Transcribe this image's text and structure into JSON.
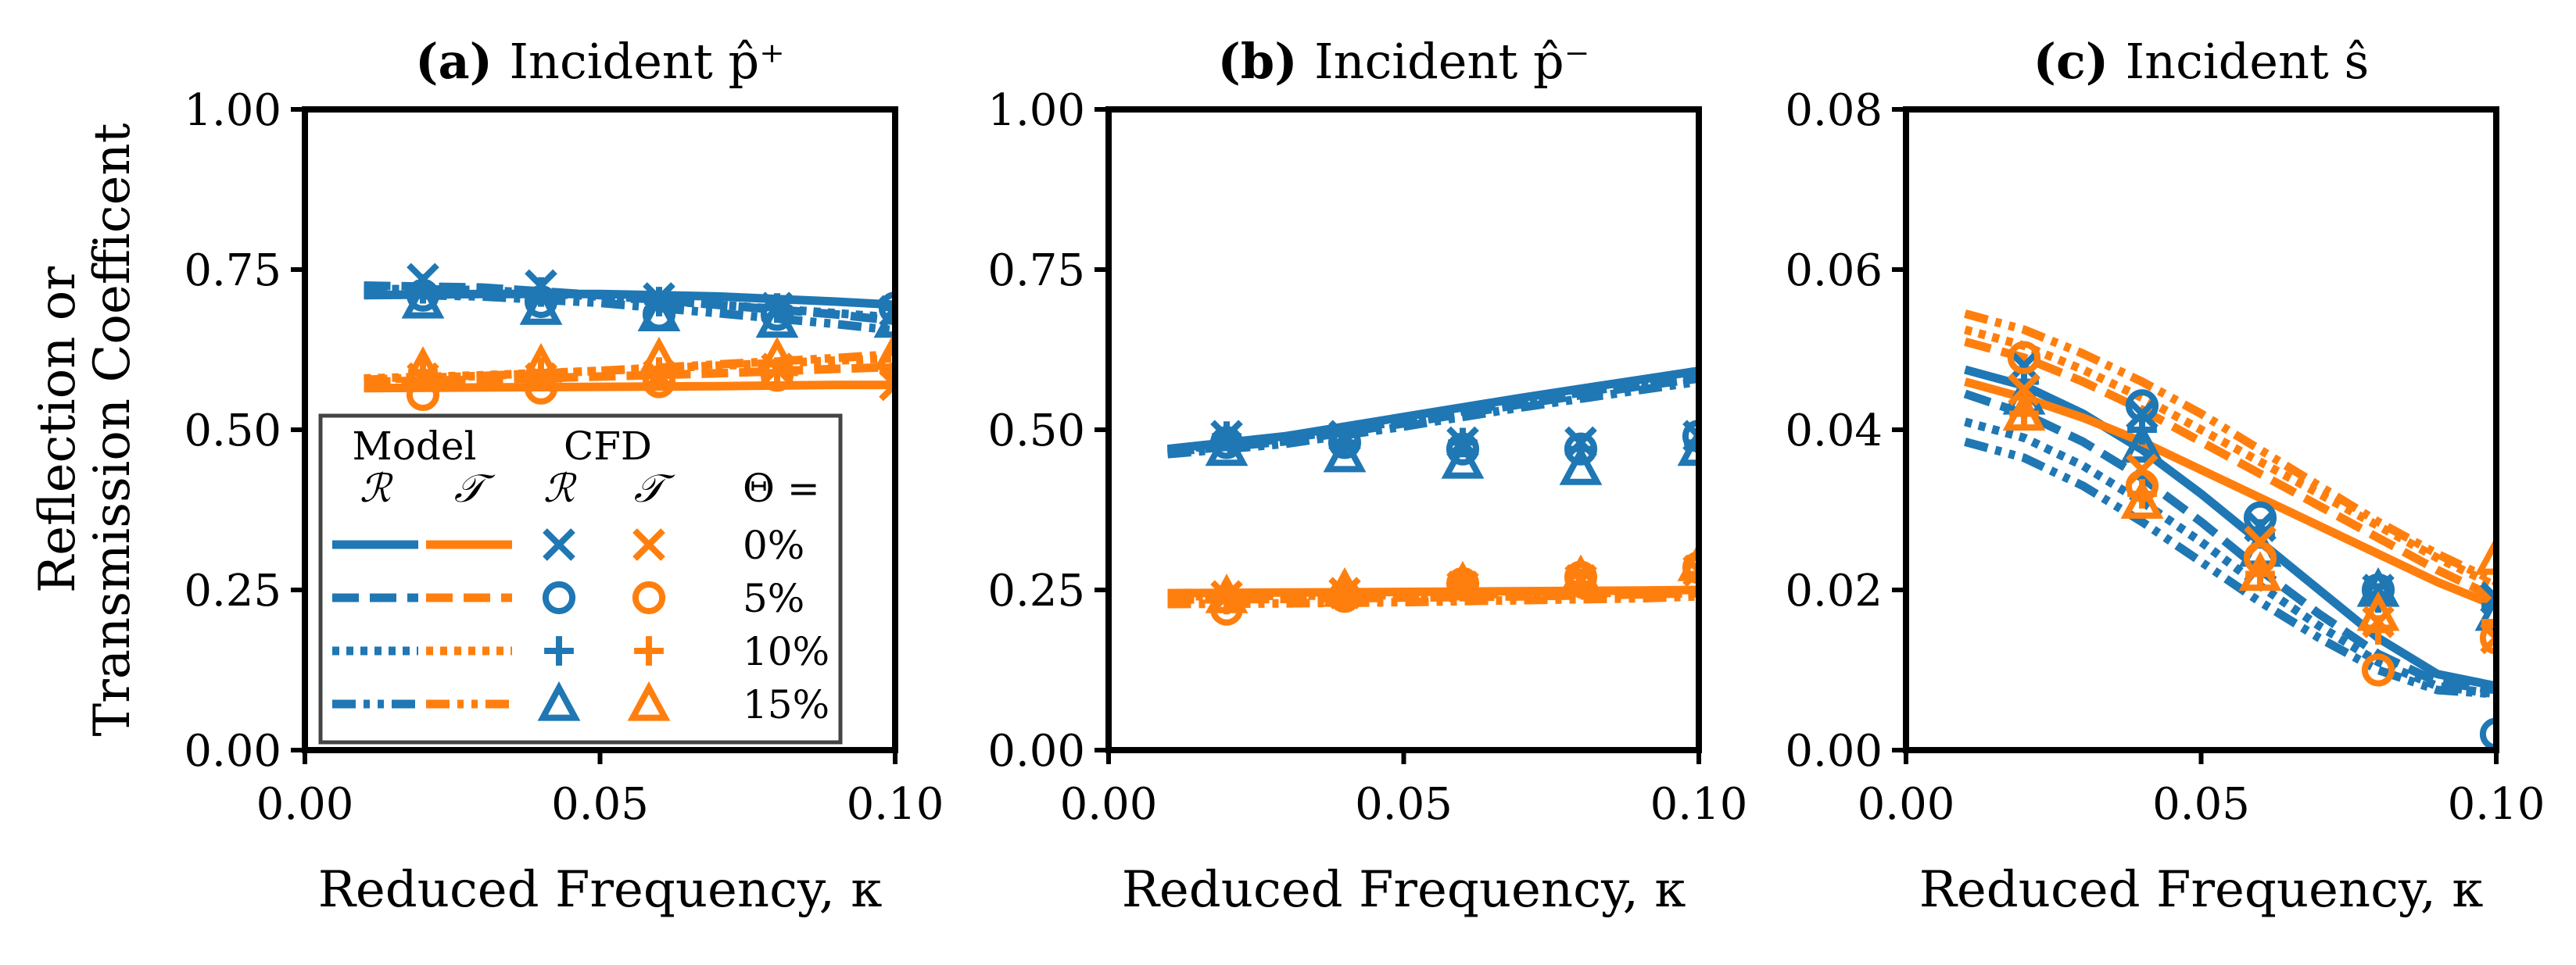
{
  "chart_data": [
    {
      "type": "line",
      "panel": "a",
      "title_bold": "(a)",
      "title": "Incident p̂⁺",
      "xlabel": "Reduced Frequency, κ",
      "ylabel_line1": "Reflection or",
      "ylabel_line2": "Transmission Coefficent",
      "xlim": [
        0.0,
        0.1
      ],
      "ylim": [
        0.0,
        1.0
      ],
      "xticks": [
        0.0,
        0.05,
        0.1
      ],
      "xtick_labels": [
        "0.00",
        "0.05",
        "0.10"
      ],
      "yticks": [
        0.0,
        0.25,
        0.5,
        0.75,
        1.0
      ],
      "ytick_labels": [
        "0.00",
        "0.25",
        "0.50",
        "0.75",
        "1.00"
      ],
      "model_x": [
        0.01,
        0.03,
        0.05,
        0.07,
        0.09,
        0.1
      ],
      "model_series": [
        {
          "name": "R 0%",
          "color": "#1f77b4",
          "dash": "solid",
          "y": [
            0.71,
            0.712,
            0.712,
            0.708,
            0.7,
            0.695
          ]
        },
        {
          "name": "R 5%",
          "color": "#1f77b4",
          "dash": "dashed",
          "y": [
            0.725,
            0.722,
            0.71,
            0.695,
            0.68,
            0.67
          ]
        },
        {
          "name": "R 10%",
          "color": "#1f77b4",
          "dash": "dotted",
          "y": [
            0.72,
            0.718,
            0.708,
            0.695,
            0.682,
            0.675
          ]
        },
        {
          "name": "R 15%",
          "color": "#1f77b4",
          "dash": "dashdotdot",
          "y": [
            0.712,
            0.708,
            0.698,
            0.682,
            0.665,
            0.655
          ]
        },
        {
          "name": "T 0%",
          "color": "#ff7f0e",
          "dash": "solid",
          "y": [
            0.565,
            0.566,
            0.567,
            0.568,
            0.57,
            0.57
          ]
        },
        {
          "name": "T 5%",
          "color": "#ff7f0e",
          "dash": "dashed",
          "y": [
            0.575,
            0.578,
            0.583,
            0.588,
            0.595,
            0.598
          ]
        },
        {
          "name": "T 10%",
          "color": "#ff7f0e",
          "dash": "dotted",
          "y": [
            0.58,
            0.585,
            0.592,
            0.6,
            0.608,
            0.612
          ]
        },
        {
          "name": "T 15%",
          "color": "#ff7f0e",
          "dash": "dashdotdot",
          "y": [
            0.578,
            0.584,
            0.592,
            0.602,
            0.612,
            0.618
          ]
        }
      ],
      "cfd_x": [
        0.02,
        0.04,
        0.06,
        0.08,
        0.1
      ],
      "cfd_series": [
        {
          "name": "R 0%",
          "color": "#1f77b4",
          "marker": "x",
          "y": [
            0.735,
            0.725,
            0.705,
            0.69,
            0.685
          ]
        },
        {
          "name": "R 5%",
          "color": "#1f77b4",
          "marker": "o",
          "y": [
            0.71,
            0.7,
            0.68,
            0.68,
            0.69
          ]
        },
        {
          "name": "R 10%",
          "color": "#1f77b4",
          "marker": "+",
          "y": [
            0.72,
            0.715,
            0.7,
            0.69,
            0.69
          ]
        },
        {
          "name": "R 15%",
          "color": "#1f77b4",
          "marker": "^",
          "y": [
            0.7,
            0.69,
            0.68,
            0.67,
            0.67
          ]
        },
        {
          "name": "T 0%",
          "color": "#ff7f0e",
          "marker": "x",
          "y": [
            0.58,
            0.58,
            0.585,
            0.595,
            0.57
          ]
        },
        {
          "name": "T 5%",
          "color": "#ff7f0e",
          "marker": "o",
          "y": [
            0.555,
            0.565,
            0.575,
            0.585,
            0.6
          ]
        },
        {
          "name": "T 10%",
          "color": "#ff7f0e",
          "marker": "+",
          "y": [
            0.59,
            0.59,
            0.59,
            0.59,
            0.59
          ]
        },
        {
          "name": "T 15%",
          "color": "#ff7f0e",
          "marker": "^",
          "y": [
            0.595,
            0.6,
            0.61,
            0.61,
            0.62
          ]
        }
      ]
    },
    {
      "type": "line",
      "panel": "b",
      "title_bold": "(b)",
      "title": "Incident p̂⁻",
      "xlabel": "Reduced Frequency, κ",
      "xlim": [
        0.0,
        0.1
      ],
      "ylim": [
        0.0,
        1.0
      ],
      "xticks": [
        0.0,
        0.05,
        0.1
      ],
      "xtick_labels": [
        "0.00",
        "0.05",
        "0.10"
      ],
      "yticks": [
        0.0,
        0.25,
        0.5,
        0.75,
        1.0
      ],
      "ytick_labels": [
        "0.00",
        "0.25",
        "0.50",
        "0.75",
        "1.00"
      ],
      "model_x": [
        0.01,
        0.03,
        0.05,
        0.07,
        0.09,
        0.1
      ],
      "model_series": [
        {
          "name": "R 0%",
          "color": "#1f77b4",
          "dash": "solid",
          "y": [
            0.47,
            0.49,
            0.52,
            0.55,
            0.578,
            0.592
          ]
        },
        {
          "name": "R 5%",
          "color": "#1f77b4",
          "dash": "dashed",
          "y": [
            0.465,
            0.482,
            0.51,
            0.54,
            0.568,
            0.58
          ]
        },
        {
          "name": "R 10%",
          "color": "#1f77b4",
          "dash": "dotted",
          "y": [
            0.468,
            0.486,
            0.514,
            0.544,
            0.572,
            0.585
          ]
        },
        {
          "name": "R 15%",
          "color": "#1f77b4",
          "dash": "dashdotdot",
          "y": [
            0.462,
            0.478,
            0.505,
            0.535,
            0.562,
            0.575
          ]
        },
        {
          "name": "T 0%",
          "color": "#ff7f0e",
          "dash": "solid",
          "y": [
            0.245,
            0.246,
            0.247,
            0.248,
            0.249,
            0.25
          ]
        },
        {
          "name": "T 5%",
          "color": "#ff7f0e",
          "dash": "dashed",
          "y": [
            0.235,
            0.236,
            0.238,
            0.24,
            0.243,
            0.245
          ]
        },
        {
          "name": "T 10%",
          "color": "#ff7f0e",
          "dash": "dotted",
          "y": [
            0.24,
            0.241,
            0.242,
            0.244,
            0.246,
            0.248
          ]
        },
        {
          "name": "T 15%",
          "color": "#ff7f0e",
          "dash": "dashdotdot",
          "y": [
            0.228,
            0.229,
            0.231,
            0.234,
            0.237,
            0.24
          ]
        }
      ],
      "cfd_x": [
        0.02,
        0.04,
        0.06,
        0.08,
        0.1
      ],
      "cfd_series": [
        {
          "name": "R 0%",
          "color": "#1f77b4",
          "marker": "x",
          "y": [
            0.49,
            0.49,
            0.48,
            0.48,
            0.49
          ]
        },
        {
          "name": "R 5%",
          "color": "#1f77b4",
          "marker": "o",
          "y": [
            0.48,
            0.48,
            0.47,
            0.47,
            0.49
          ]
        },
        {
          "name": "R 10%",
          "color": "#1f77b4",
          "marker": "+",
          "y": [
            0.49,
            0.48,
            0.48,
            0.47,
            0.48
          ]
        },
        {
          "name": "R 15%",
          "color": "#1f77b4",
          "marker": "^",
          "y": [
            0.47,
            0.46,
            0.45,
            0.44,
            0.47
          ]
        },
        {
          "name": "T 0%",
          "color": "#ff7f0e",
          "marker": "x",
          "y": [
            0.24,
            0.245,
            0.255,
            0.265,
            0.28
          ]
        },
        {
          "name": "T 5%",
          "color": "#ff7f0e",
          "marker": "o",
          "y": [
            0.22,
            0.24,
            0.26,
            0.27,
            0.285
          ]
        },
        {
          "name": "T 10%",
          "color": "#ff7f0e",
          "marker": "+",
          "y": [
            0.235,
            0.245,
            0.255,
            0.26,
            0.275
          ]
        },
        {
          "name": "T 15%",
          "color": "#ff7f0e",
          "marker": "^",
          "y": [
            0.24,
            0.25,
            0.26,
            0.27,
            0.29
          ]
        }
      ]
    },
    {
      "type": "line",
      "panel": "c",
      "title_bold": "(c)",
      "title": "Incident ŝ",
      "xlabel": "Reduced Frequency, κ",
      "xlim": [
        0.0,
        0.1
      ],
      "ylim": [
        0.0,
        0.08
      ],
      "xticks": [
        0.0,
        0.05,
        0.1
      ],
      "xtick_labels": [
        "0.00",
        "0.05",
        "0.10"
      ],
      "yticks": [
        0.0,
        0.02,
        0.04,
        0.06,
        0.08
      ],
      "ytick_labels": [
        "0.00",
        "0.02",
        "0.04",
        "0.06",
        "0.08"
      ],
      "model_x": [
        0.01,
        0.02,
        0.03,
        0.04,
        0.05,
        0.06,
        0.07,
        0.08,
        0.09,
        0.1
      ],
      "model_series": [
        {
          "name": "R 0%",
          "color": "#1f77b4",
          "dash": "solid",
          "y": [
            0.0475,
            0.0455,
            0.042,
            0.0375,
            0.032,
            0.026,
            0.02,
            0.014,
            0.0095,
            0.008
          ]
        },
        {
          "name": "R 5%",
          "color": "#1f77b4",
          "dash": "dashed",
          "y": [
            0.0445,
            0.042,
            0.0385,
            0.034,
            0.0285,
            0.0225,
            0.017,
            0.012,
            0.0085,
            0.0075
          ]
        },
        {
          "name": "R 10%",
          "color": "#1f77b4",
          "dash": "dotted",
          "y": [
            0.041,
            0.039,
            0.0355,
            0.031,
            0.026,
            0.0205,
            0.0155,
            0.011,
            0.008,
            0.007
          ]
        },
        {
          "name": "R 15%",
          "color": "#1f77b4",
          "dash": "dashdotdot",
          "y": [
            0.0385,
            0.0365,
            0.033,
            0.0285,
            0.0235,
            0.0185,
            0.014,
            0.01,
            0.0075,
            0.007
          ]
        },
        {
          "name": "T 0%",
          "color": "#ff7f0e",
          "dash": "solid",
          "y": [
            0.046,
            0.044,
            0.0415,
            0.0385,
            0.035,
            0.0315,
            0.028,
            0.0245,
            0.021,
            0.018
          ]
        },
        {
          "name": "T 5%",
          "color": "#ff7f0e",
          "dash": "dashed",
          "y": [
            0.051,
            0.049,
            0.046,
            0.0425,
            0.0385,
            0.0345,
            0.0305,
            0.0265,
            0.0225,
            0.019
          ]
        },
        {
          "name": "T 10%",
          "color": "#ff7f0e",
          "dash": "dotted",
          "y": [
            0.0525,
            0.0505,
            0.0475,
            0.044,
            0.04,
            0.036,
            0.032,
            0.028,
            0.024,
            0.0205
          ]
        },
        {
          "name": "T 15%",
          "color": "#ff7f0e",
          "dash": "dashdotdot",
          "y": [
            0.0545,
            0.0525,
            0.0495,
            0.046,
            0.042,
            0.0375,
            0.033,
            0.0285,
            0.0245,
            0.021
          ]
        }
      ],
      "cfd_x": [
        0.02,
        0.04,
        0.06,
        0.08,
        0.1
      ],
      "cfd_series": [
        {
          "name": "R 0%",
          "color": "#1f77b4",
          "marker": "x",
          "y": [
            0.048,
            0.042,
            0.028,
            0.02,
            0.019
          ]
        },
        {
          "name": "R 5%",
          "color": "#1f77b4",
          "marker": "o",
          "y": [
            0.049,
            0.043,
            0.029,
            0.02,
            0.002
          ]
        },
        {
          "name": "R 10%",
          "color": "#1f77b4",
          "marker": "+",
          "y": [
            0.046,
            0.04,
            0.027,
            0.019,
            0.018
          ]
        },
        {
          "name": "R 15%",
          "color": "#1f77b4",
          "marker": "^",
          "y": [
            0.044,
            0.038,
            0.025,
            0.02,
            0.017
          ]
        },
        {
          "name": "T 0%",
          "color": "#ff7f0e",
          "marker": "x",
          "y": [
            0.045,
            0.035,
            0.026,
            0.016,
            0.014
          ]
        },
        {
          "name": "T 5%",
          "color": "#ff7f0e",
          "marker": "o",
          "y": [
            0.049,
            0.033,
            0.024,
            0.01,
            0.014
          ]
        },
        {
          "name": "T 10%",
          "color": "#ff7f0e",
          "marker": "+",
          "y": [
            0.042,
            0.032,
            0.022,
            0.015,
            0.016
          ]
        },
        {
          "name": "T 15%",
          "color": "#ff7f0e",
          "marker": "^",
          "y": [
            0.042,
            0.031,
            0.022,
            0.017,
            0.024
          ]
        }
      ]
    }
  ],
  "legend": {
    "model_label": "Model",
    "cfd_label": "CFD",
    "r_symbol": "ℛ",
    "t_symbol": "𝒯",
    "theta_header": "Θ =",
    "rows": [
      "0%",
      "5%",
      "10%",
      "15%"
    ]
  }
}
